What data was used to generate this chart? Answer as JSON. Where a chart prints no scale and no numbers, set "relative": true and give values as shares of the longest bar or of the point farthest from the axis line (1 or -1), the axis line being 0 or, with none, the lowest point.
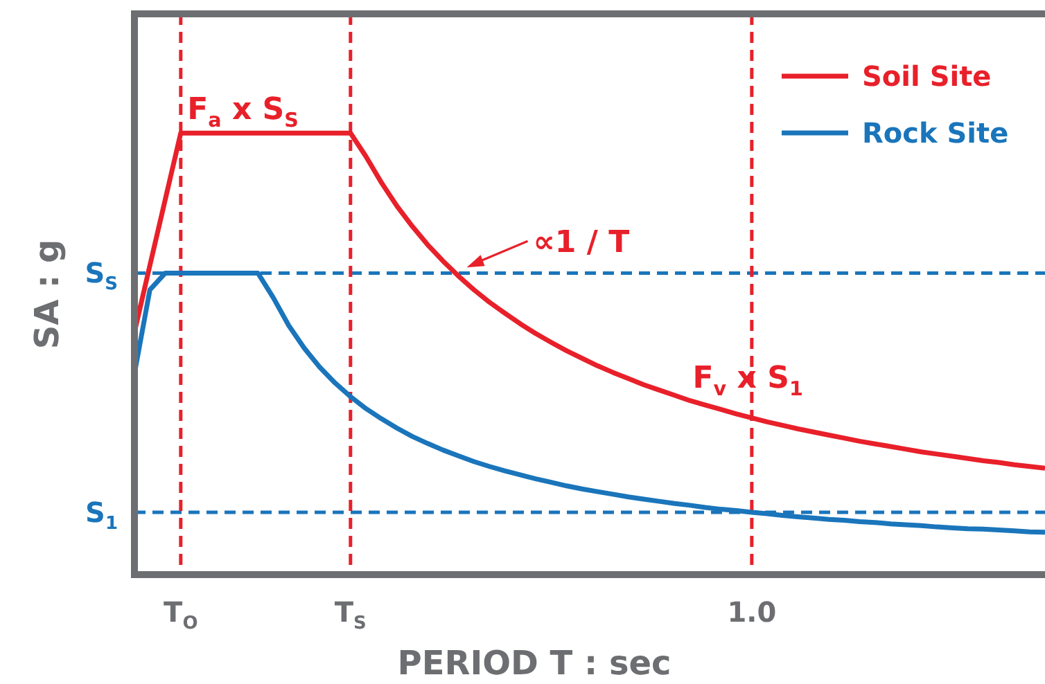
{
  "chart_data": {
    "type": "line",
    "xlabel": "PERIOD T : sec",
    "ylabel": "SA : g",
    "relative": true,
    "categories": [
      null,
      null,
      null,
      "T$_{O}$",
      null,
      null,
      null,
      null,
      null,
      null,
      null,
      null,
      null,
      null,
      "T$_{S}$",
      null,
      null,
      null,
      null,
      null,
      null,
      null,
      null,
      null,
      null,
      null,
      null,
      null,
      null,
      null,
      null,
      null,
      null,
      null,
      null,
      null,
      null,
      null,
      null,
      null,
      "1.0",
      null,
      null,
      null,
      null,
      null,
      null,
      null,
      null,
      null,
      null,
      null,
      null,
      null,
      null,
      null,
      null,
      null,
      null,
      null
    ],
    "series": [
      {
        "name": "Soil Site",
        "color": "#e8202a",
        "values": [
          0.549,
          0.7,
          0.85,
          1,
          1,
          1,
          1,
          1,
          1,
          1,
          1,
          1,
          1,
          1,
          1,
          0.947,
          0.888,
          0.835,
          0.789,
          0.747,
          0.71,
          0.676,
          0.645,
          0.617,
          0.592,
          0.568,
          0.546,
          0.526,
          0.507,
          0.49,
          0.473,
          0.458,
          0.444,
          0.43,
          0.418,
          0.406,
          0.394,
          0.384,
          0.374,
          0.364,
          0.355,
          0.346,
          0.338,
          0.33,
          0.323,
          0.316,
          0.309,
          0.302,
          0.296,
          0.29,
          0.284,
          0.278,
          0.273,
          0.268,
          0.263,
          0.258,
          0.254,
          0.249,
          0.245,
          0.241
        ]
      },
      {
        "name": "Rock Site",
        "color": "#1a75bb",
        "values": [
          0.455,
          0.645,
          0.683,
          0.683,
          0.683,
          0.683,
          0.683,
          0.683,
          0.683,
          0.627,
          0.564,
          0.513,
          0.47,
          0.434,
          0.403,
          0.376,
          0.353,
          0.332,
          0.313,
          0.297,
          0.282,
          0.269,
          0.256,
          0.245,
          0.235,
          0.226,
          0.217,
          0.209,
          0.201,
          0.194,
          0.188,
          0.182,
          0.176,
          0.171,
          0.166,
          0.161,
          0.157,
          0.152,
          0.148,
          0.145,
          0.141,
          0.138,
          0.134,
          0.131,
          0.128,
          0.125,
          0.123,
          0.12,
          0.118,
          0.115,
          0.113,
          0.111,
          0.108,
          0.106,
          0.104,
          0.103,
          0.101,
          0.099,
          0.097,
          0.096
        ]
      }
    ],
    "ref_lines": [
      {
        "axis": "y",
        "value": 0.683,
        "label": "S$_{S}$",
        "color": "#1a75bb",
        "line_style": "dashed"
      },
      {
        "axis": "y",
        "value": 0.141,
        "label": "S$_{1}$",
        "color": "#1a75bb",
        "line_style": "dashed"
      },
      {
        "axis": "x",
        "value": "T$_{O}$",
        "color": "#e8202a",
        "line_style": "dashed"
      },
      {
        "axis": "x",
        "value": "T$_{S}$",
        "color": "#e8202a",
        "line_style": "dashed"
      },
      {
        "axis": "x",
        "value": "1.0",
        "color": "#e8202a",
        "line_style": "dashed"
      }
    ],
    "annotations": [
      "F$_{a}$ x S$_{S}$",
      "∝1 / T",
      "F$_{v}$ x S$_{1}$"
    ],
    "legend": "top right",
    "marker": "none",
    "line_style": "solid"
  }
}
